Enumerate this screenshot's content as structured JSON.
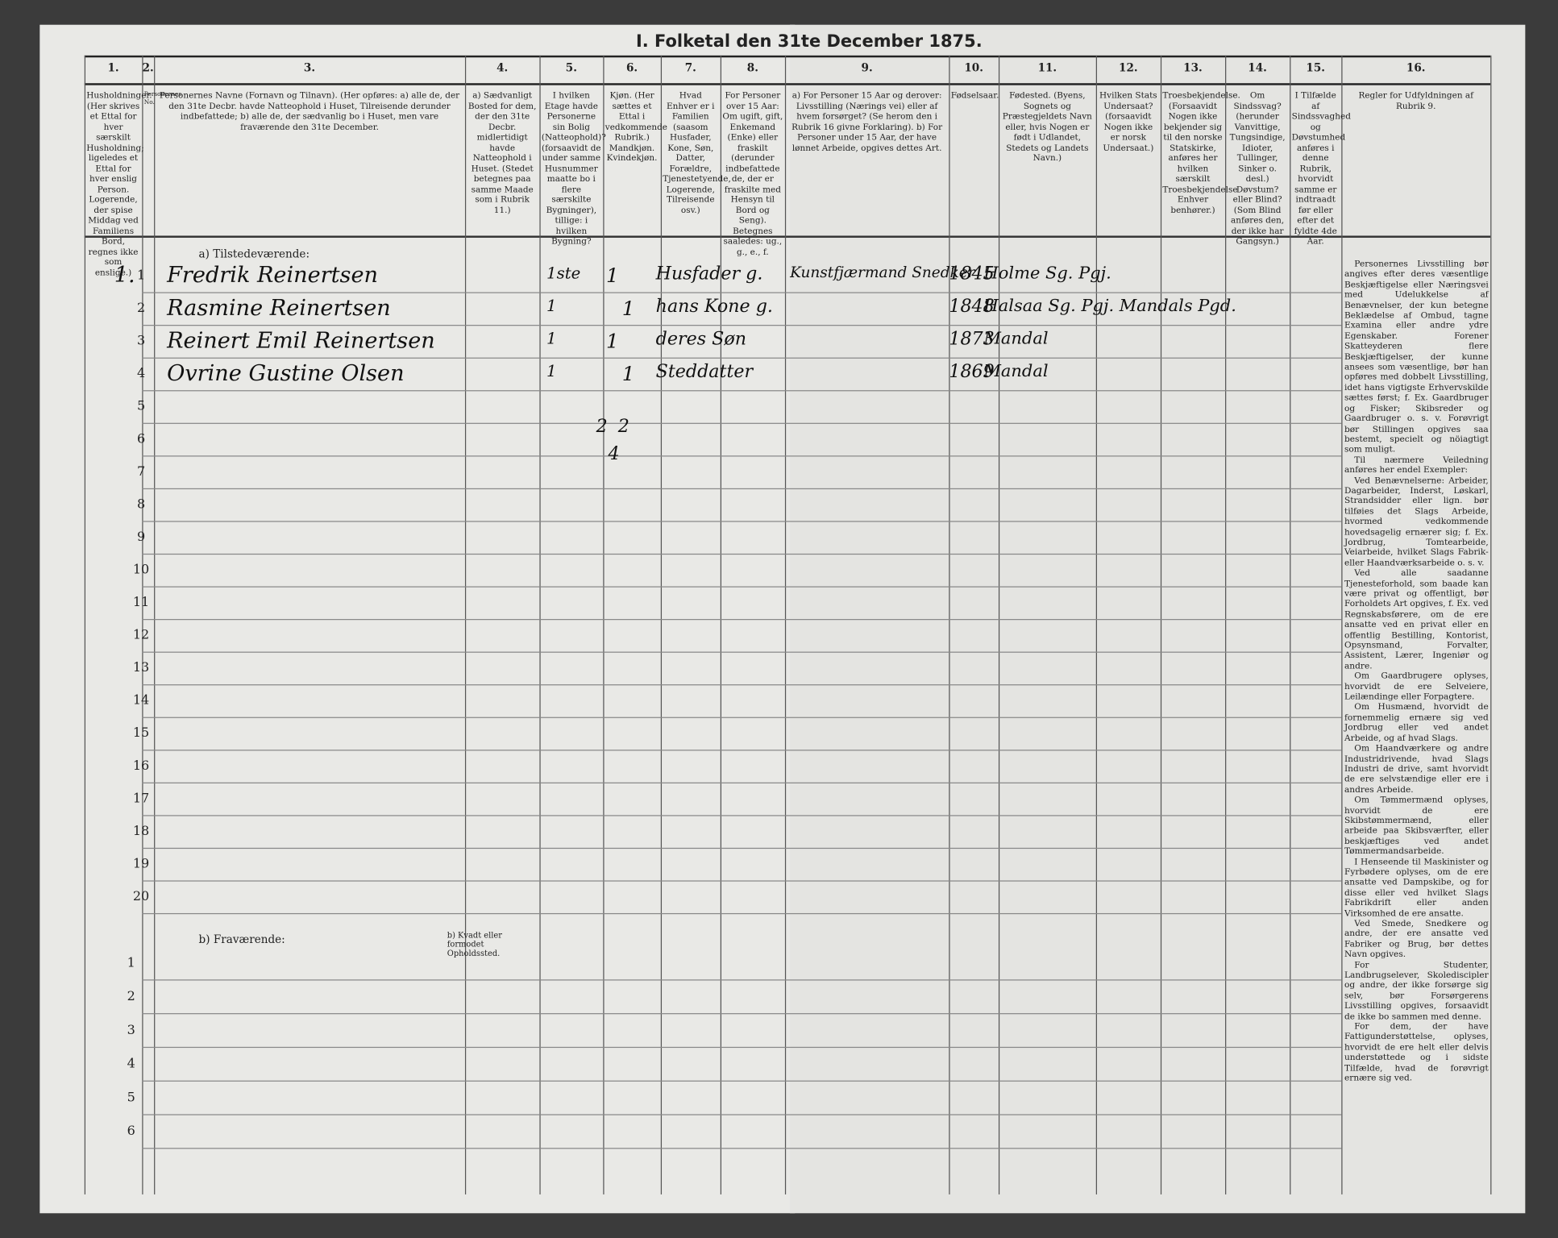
{
  "title": "I. Folketal den 31te December 1875.",
  "columns": [
    {
      "number": "1.",
      "text": "Husholdninger. (Her skrives et Ettal for hver særskilt Husholdning; ligeledes et Ettal for hver enslig Person. Logerende, der spise Middag ved Familiens Bord, regnes ikke som enslige.)"
    },
    {
      "number": "2.",
      "text": "Personernes No."
    },
    {
      "number": "3.",
      "text": "Personernes Navne (Fornavn og Tilnavn). (Her opføres: a) alle de, der den 31te Decbr. havde Natteophold i Huset, Tilreisende derunder indbefattede; b) alle de, der sædvanlig bo i Huset, men vare fraværende den 31te December."
    },
    {
      "number": "4.",
      "text": "a) Sædvanligt Bosted for dem, der den 31te Decbr. midlertidigt havde Natteophold i Huset. (Stedet betegnes paa samme Maade som i Rubrik 11.)"
    },
    {
      "number": "5.",
      "text": "I hvilken Etage havde Personerne sin Bolig (Natteophold)? (forsaavidt de under samme Husnummer maatte bo i flere særskilte Bygninger), tillige: i hvilken Bygning?"
    },
    {
      "number": "6.",
      "text": "Kjøn. (Her sættes et Ettal i vedkommende Rubrik.) Mandkjøn. Kvindekjøn."
    },
    {
      "number": "7.",
      "text": "Hvad Enhver er i Familien (saasom Husfader, Kone, Søn, Datter, Forældre, Tjenestetyende, Logerende, Tilreisende osv.)"
    },
    {
      "number": "8.",
      "text": "For Personer over 15 Aar: Om ugift, gift, Enkemand (Enke) eller fraskilt (derunder indbefattede de, der er fraskilte med Hensyn til Bord og Seng). Betegnes saaledes: ug., g., e., f."
    },
    {
      "number": "9.",
      "text": "a) For Personer 15 Aar og derover: Livsstilling (Nærings vei) eller af hvem forsørget? (Se herom den i Rubrik 16 givne Forklaring). b) For Personer under 15 Aar, der have lønnet Arbeide, opgives dettes Art."
    },
    {
      "number": "10.",
      "text": "Fødselsaar."
    },
    {
      "number": "11.",
      "text": "Fødested. (Byens, Sognets og Præstegjeldets Navn eller, hvis Nogen er født i Udlandet, Stedets og Landets Navn.)"
    },
    {
      "number": "12.",
      "text": "Hvilken Stats Undersaat? (forsaavidt Nogen ikke er norsk Undersaat.)"
    },
    {
      "number": "13.",
      "text": "Troesbekjendelse. (Forsaavidt Nogen ikke bekjender sig til den norske Statskirke, anføres her hvilken særskilt Troesbekjendelse Enhver benhører.)"
    },
    {
      "number": "14.",
      "text": "Om Sindssvag? (herunder Vanvittige, Tungsindige, Idioter, Tullinger, Sinker o. desl.) Døvstum? eller Blind? (Som Blind anføres den, der ikke har Gangsyn.)"
    },
    {
      "number": "15.",
      "text": "I Tilfælde af Sindssvaghed og Døvstumhed anføres i denne Rubrik, hvorvidt samme er indtraadt før eller efter det fyldte 4de Aar."
    },
    {
      "number": "16.",
      "text": "Regler for Udfyldningen af Rubrik 9."
    }
  ],
  "present_label": "a) Tilstedeværende:",
  "absent_label": "b) Fraværende:",
  "absent_note": "b) Kvadt eller formodet Opholdssted.",
  "present_rows": [
    "1",
    "2",
    "3",
    "4",
    "5",
    "6",
    "7",
    "8",
    "9",
    "10",
    "11",
    "12",
    "13",
    "14",
    "15",
    "16",
    "17",
    "18",
    "19",
    "20"
  ],
  "absent_rows": [
    "1",
    "2",
    "3",
    "4",
    "5",
    "6"
  ],
  "entries": [
    {
      "household": "1.",
      "name": "Fredrik Reinertsen",
      "floor": "1ste",
      "male": "1",
      "role": "Husfader g.",
      "occupation": "Kunstfjærmand Snedker",
      "birth_year": "1845",
      "birthplace": "Holme Sg. Pgj."
    },
    {
      "name": "Rasmine Reinertsen",
      "floor": "1",
      "female": "1",
      "role": "hans Kone g.",
      "birth_year": "1848",
      "birthplace": "Halsaa Sg. Pgj. Mandals Pgd."
    },
    {
      "name": "Reinert Emil Reinertsen",
      "floor": "1",
      "male": "1",
      "role": "deres Søn",
      "birth_year": "1873",
      "birthplace": "Mandal"
    },
    {
      "name": "Ovrine Gustine Olsen",
      "floor": "1",
      "female": "1",
      "role": "Steddatter",
      "birth_year": "1869",
      "birthplace": "Mandal"
    }
  ],
  "tally": [
    "2",
    "2",
    "4"
  ],
  "instructions": [
    "Personernes Livsstilling bør angives efter deres væsentlige Beskjæftigelse eller Næringsvei med Udelukkelse af Benævnelser, der kun betegne Beklædelse af Ombud, tagne Examina eller andre ydre Egenskaber. Forener Skatteyderen flere Beskjæftigelser, der kunne ansees som væsentlige, bør han opføres med dobbelt Livsstilling, idet hans vigtigste Erhvervskilde sættes først; f. Ex. Gaardbruger og Fisker; Skibsreder og Gaardbruger o. s. v. Forøvrigt bør Stillingen opgives saa bestemt, specielt og nöiagtigt som muligt.",
    "Til nærmere Veiledning anføres her endel Exempler:",
    "Ved Benævnelserne: Arbeider, Dagarbeider, Inderst, Løskarl, Strandsidder eller lign. bør tilføies det Slags Arbeide, hvormed vedkommende hovedsagelig ernærer sig; f. Ex. Jordbrug, Tomtearbeide, Veiarbeide, hvilket Slags Fabrik- eller Haandværksarbeide o. s. v.",
    "Ved alle saadanne Tjenesteforhold, som baade kan være privat og offentligt, bør Forholdets Art opgives, f. Ex. ved Regnskabsførere, om de ere ansatte ved en privat eller en offentlig Bestilling, Kontorist, Opsynsmand, Forvalter, Assistent, Lærer, Ingeniør og andre.",
    "Om Gaardbrugere oplyses, hvorvidt de ere Selveiere, Leilændinge eller Forpagtere.",
    "Om Husmænd, hvorvidt de fornemmelig ernære sig ved Jordbrug eller ved andet Arbeide, og af hvad Slags.",
    "Om Haandværkere og andre Industridrivende, hvad Slags Industri de drive, samt hvorvidt de ere selvstændige eller ere i andres Arbeide.",
    "Om Tømmermænd oplyses, hvorvidt de ere Skibstømmermænd, eller arbeide paa Skibsværfter, eller beskjæftiges ved andet Tømmermandsarbeide.",
    "I Henseende til Maskinister og Fyrbødere oplyses, om de ere ansatte ved Dampskibe, og for disse eller ved hvilket Slags Fabrikdrift eller anden Virksomhed de ere ansatte.",
    "Ved Smede, Snedkere og andre, der ere ansatte ved Fabriker og Brug, bør dettes Navn opgives.",
    "For Studenter, Landbrugselever, Skolediscipler og andre, der ikke forsørge sig selv, bør Forsørgerens Livsstilling opgives, forsaavidt de ikke bo sammen med denne.",
    "For dem, der have Fattigunderstøttelse, oplyses, hvorvidt de ere helt eller delvis understøttede og i sidste Tilfælde, hvad de forøvrigt ernære sig ved."
  ]
}
